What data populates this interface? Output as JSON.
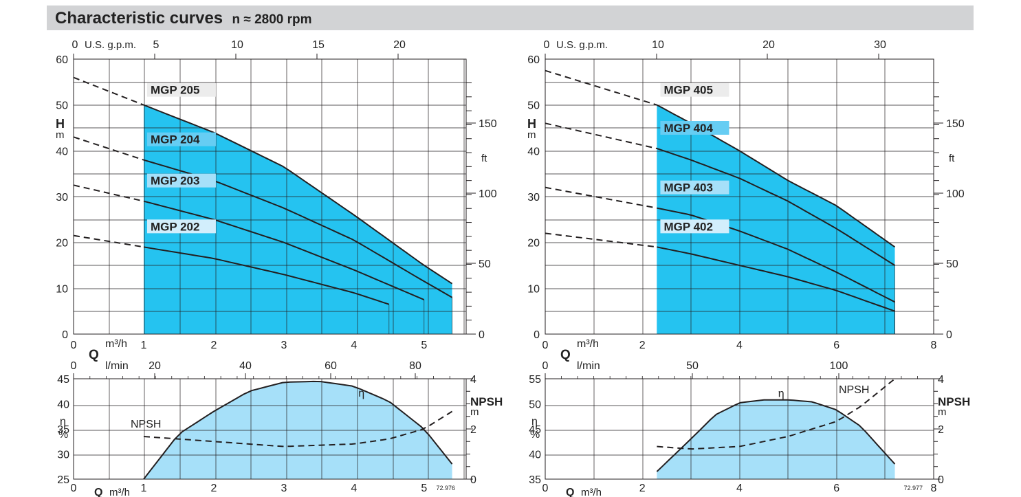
{
  "header": {
    "title_main": "Characteristic curves",
    "title_sub": "n ≈ 2800 rpm"
  },
  "colors": {
    "band_top": "#25c3f0",
    "band_2": "#66cdf3",
    "band_3": "#a6e0f9",
    "band_4": "#d2eefc",
    "eff_fill": "#a6e0f9",
    "curve": "#231f20",
    "grid": "#231f20",
    "header_bg": "#d2d3d5"
  },
  "chart_data": [
    {
      "type": "line",
      "id": "mgp200-head",
      "xlim": [
        0,
        5.6
      ],
      "ylim": [
        0,
        60
      ],
      "xlabel": "Q",
      "x_unit": "m³/h",
      "ylabel": "H",
      "y_unit": "m",
      "x_ticks": [
        0,
        1,
        2,
        3,
        4,
        5
      ],
      "y_ticks": [
        0,
        10,
        20,
        30,
        40,
        50,
        60
      ],
      "top_axis": {
        "label": "U.S. g.p.m.",
        "ticks": [
          0,
          5,
          10,
          15,
          20
        ]
      },
      "right_axis": {
        "label": "ft",
        "ticks": [
          0,
          50,
          100,
          150
        ]
      },
      "series": [
        {
          "name": "MGP 205",
          "x": [
            1,
            2,
            3,
            4,
            5,
            5.4
          ],
          "y": [
            50,
            44,
            36.5,
            26,
            15,
            11
          ],
          "end_x": 5.4,
          "dash_y0": 56
        },
        {
          "name": "MGP 204",
          "x": [
            1,
            2,
            3,
            4,
            5,
            5.4
          ],
          "y": [
            38,
            33.5,
            27.5,
            20.5,
            11.5,
            8
          ],
          "end_x": 5.4,
          "dash_y0": 43
        },
        {
          "name": "MGP 203",
          "x": [
            1,
            2,
            3,
            4,
            5
          ],
          "y": [
            29,
            25,
            20,
            14,
            7.5
          ],
          "end_x": 5.0,
          "dash_y0": 32.5
        },
        {
          "name": "MGP 202",
          "x": [
            1,
            2,
            3,
            4,
            4.5
          ],
          "y": [
            19,
            16.5,
            13,
            9,
            6.5
          ],
          "end_x": 4.5,
          "dash_y0": 21.5
        }
      ]
    },
    {
      "type": "line",
      "id": "mgp200-eff",
      "xlim": [
        0,
        5.6
      ],
      "ylim": [
        25,
        45
      ],
      "xlabel": "Q",
      "x_unit": "m³/h",
      "ylabel": "η",
      "y_unit": "%",
      "x_ticks": [
        0,
        1,
        2,
        3,
        4,
        5
      ],
      "y_ticks": [
        25,
        30,
        35,
        40,
        45
      ],
      "top_axis": {
        "label": "l/min",
        "ticks": [
          0,
          20,
          40,
          60,
          80
        ]
      },
      "right_axis": {
        "label": "NPSH",
        "unit": "m",
        "ticks": [
          0,
          2,
          4
        ]
      },
      "code": "72.976",
      "series": [
        {
          "name": "η",
          "x": [
            1,
            1.5,
            2,
            2.5,
            3,
            3.5,
            4,
            4.5,
            5,
            5.4
          ],
          "y": [
            25,
            34,
            38.5,
            42.5,
            44.3,
            44.5,
            43.5,
            40.5,
            35,
            28
          ]
        },
        {
          "name": "NPSH",
          "axis": "right",
          "x": [
            1,
            2,
            3,
            4,
            4.5,
            5,
            5.4
          ],
          "y": [
            1.7,
            1.5,
            1.3,
            1.4,
            1.6,
            2.0,
            2.7
          ]
        }
      ]
    },
    {
      "type": "line",
      "id": "mgp400-head",
      "xlim": [
        0,
        8
      ],
      "ylim": [
        0,
        60
      ],
      "xlabel": "Q",
      "x_unit": "m³/h",
      "ylabel": "H",
      "y_unit": "m",
      "x_ticks": [
        0,
        2,
        4,
        6,
        8
      ],
      "y_ticks": [
        0,
        10,
        20,
        30,
        40,
        50,
        60
      ],
      "top_axis": {
        "label": "U.S. g.p.m.",
        "ticks": [
          0,
          10,
          20,
          30
        ]
      },
      "right_axis": {
        "label": "ft",
        "ticks": [
          0,
          50,
          100,
          150
        ]
      },
      "series": [
        {
          "name": "MGP 405",
          "x": [
            2.3,
            3,
            4,
            5,
            6,
            7.2
          ],
          "y": [
            50,
            46,
            40,
            33.5,
            28,
            19
          ],
          "end_x": 7.2,
          "dash_y0": 57.5
        },
        {
          "name": "MGP 404",
          "x": [
            2.3,
            3,
            4,
            5,
            6,
            7.2
          ],
          "y": [
            40.5,
            38,
            34,
            29,
            23,
            15
          ],
          "end_x": 7.2,
          "dash_y0": 46
        },
        {
          "name": "MGP 403",
          "x": [
            2.3,
            3,
            4,
            5,
            6,
            7.2
          ],
          "y": [
            27.5,
            26,
            22.5,
            18.5,
            13.5,
            7
          ],
          "end_x": 7.2,
          "dash_y0": 32
        },
        {
          "name": "MGP 402",
          "x": [
            2.3,
            3,
            4,
            5,
            6,
            7.2
          ],
          "y": [
            19,
            17.5,
            15,
            12.5,
            9.5,
            5
          ],
          "end_x": 7.2,
          "dash_y0": 22
        }
      ]
    },
    {
      "type": "line",
      "id": "mgp400-eff",
      "xlim": [
        0,
        8
      ],
      "ylim": [
        35,
        55
      ],
      "xlabel": "Q",
      "x_unit": "m³/h",
      "ylabel": "η",
      "y_unit": "%",
      "x_ticks": [
        0,
        2,
        4,
        6,
        8
      ],
      "y_ticks": [
        35,
        40,
        45,
        50,
        55
      ],
      "top_axis": {
        "label": "l/min",
        "ticks": [
          0,
          50,
          100
        ]
      },
      "right_axis": {
        "label": "NPSH",
        "unit": "m",
        "ticks": [
          0,
          2,
          4
        ]
      },
      "code": "72.977",
      "series": [
        {
          "name": "η",
          "x": [
            2.3,
            3,
            3.5,
            4,
            4.5,
            5,
            5.5,
            6,
            6.5,
            7.2
          ],
          "y": [
            36.5,
            43,
            47.8,
            50.2,
            50.8,
            50.8,
            50.4,
            48.8,
            45.5,
            38
          ]
        },
        {
          "name": "NPSH",
          "axis": "right",
          "x": [
            2.3,
            3,
            4,
            5,
            6,
            6.5,
            7.2
          ],
          "y": [
            1.3,
            1.2,
            1.3,
            1.7,
            2.3,
            2.9,
            4.0
          ]
        }
      ]
    }
  ]
}
